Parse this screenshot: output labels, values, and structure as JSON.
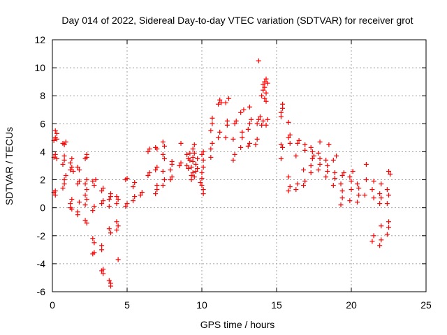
{
  "chart_data": {
    "type": "scatter",
    "title": "Day 014 of 2022, Sidereal Day-to-day VTEC variation (SDTVAR) for receiver grot",
    "xlabel": "GPS time / hours",
    "ylabel": "SDTVAR / TECUs",
    "xlim": [
      0,
      25
    ],
    "ylim": [
      -6,
      12
    ],
    "xticks": [
      0,
      5,
      10,
      15,
      20,
      25
    ],
    "yticks": [
      -6,
      -4,
      -2,
      0,
      2,
      4,
      6,
      8,
      10,
      12
    ],
    "xtick_labels": [
      "0",
      "5",
      "10",
      "15",
      "20",
      "25"
    ],
    "ytick_labels": [
      "-6",
      "-4",
      "-2",
      "0",
      "2",
      "4",
      "6",
      "8",
      "10",
      "12"
    ],
    "grid": true,
    "marker": "+",
    "marker_color": "#ff0000",
    "series": [
      {
        "name": "SDTVAR",
        "points": [
          [
            0.1,
            1.1
          ],
          [
            0.2,
            0.9
          ],
          [
            0.2,
            1.2
          ],
          [
            0.1,
            3.6
          ],
          [
            0.2,
            3.8
          ],
          [
            0.3,
            3.5
          ],
          [
            0.1,
            4.8
          ],
          [
            0.2,
            5.0
          ],
          [
            0.3,
            5.3
          ],
          [
            0.2,
            5.5
          ],
          [
            0.3,
            4.9
          ],
          [
            0.7,
            1.4
          ],
          [
            0.8,
            1.7
          ],
          [
            0.8,
            2.0
          ],
          [
            0.7,
            3.1
          ],
          [
            0.8,
            3.4
          ],
          [
            0.8,
            3.7
          ],
          [
            0.7,
            4.6
          ],
          [
            0.8,
            4.5
          ],
          [
            0.9,
            4.7
          ],
          [
            0.9,
            2.3
          ],
          [
            1.2,
            0.0
          ],
          [
            1.2,
            0.3
          ],
          [
            1.3,
            -0.1
          ],
          [
            1.3,
            0.6
          ],
          [
            1.2,
            2.7
          ],
          [
            1.3,
            2.9
          ],
          [
            1.4,
            2.6
          ],
          [
            1.2,
            3.2
          ],
          [
            1.3,
            3.5
          ],
          [
            1.7,
            -0.3
          ],
          [
            1.7,
            -0.5
          ],
          [
            1.8,
            0.4
          ],
          [
            1.7,
            1.7
          ],
          [
            1.8,
            1.9
          ],
          [
            1.8,
            2.7
          ],
          [
            1.7,
            2.9
          ],
          [
            2.2,
            -0.9
          ],
          [
            2.3,
            -1.1
          ],
          [
            2.2,
            0.2
          ],
          [
            2.3,
            0.6
          ],
          [
            2.2,
            0.9
          ],
          [
            2.3,
            1.3
          ],
          [
            2.2,
            1.7
          ],
          [
            2.3,
            2.0
          ],
          [
            2.2,
            3.5
          ],
          [
            2.3,
            3.8
          ],
          [
            2.3,
            3.6
          ],
          [
            2.7,
            -2.2
          ],
          [
            2.8,
            -2.5
          ],
          [
            2.8,
            -3.2
          ],
          [
            2.7,
            -3.3
          ],
          [
            2.7,
            -0.2
          ],
          [
            2.8,
            0.1
          ],
          [
            2.8,
            1.6
          ],
          [
            2.7,
            1.9
          ],
          [
            2.9,
            2.0
          ],
          [
            3.3,
            -2.7
          ],
          [
            3.3,
            -3.0
          ],
          [
            3.4,
            -4.4
          ],
          [
            3.4,
            -4.7
          ],
          [
            3.3,
            -4.5
          ],
          [
            3.3,
            0.3
          ],
          [
            3.4,
            0.5
          ],
          [
            3.3,
            1.2
          ],
          [
            3.4,
            1.4
          ],
          [
            3.8,
            -5.2
          ],
          [
            3.9,
            -5.4
          ],
          [
            3.9,
            -5.6
          ],
          [
            3.8,
            -1.5
          ],
          [
            3.9,
            -1.8
          ],
          [
            3.8,
            0.1
          ],
          [
            3.9,
            0.8
          ],
          [
            3.8,
            0.6
          ],
          [
            3.9,
            1.0
          ],
          [
            4.3,
            -1.0
          ],
          [
            4.4,
            -1.3
          ],
          [
            4.3,
            -1.6
          ],
          [
            4.4,
            -3.7
          ],
          [
            4.3,
            0.3
          ],
          [
            4.4,
            0.6
          ],
          [
            4.3,
            0.8
          ],
          [
            4.9,
            0.1
          ],
          [
            5.0,
            0.3
          ],
          [
            4.9,
            2.0
          ],
          [
            5.0,
            2.1
          ],
          [
            5.4,
            0.5
          ],
          [
            5.5,
            0.8
          ],
          [
            5.4,
            1.5
          ],
          [
            5.5,
            1.8
          ],
          [
            5.9,
            0.9
          ],
          [
            6.0,
            1.1
          ],
          [
            6.4,
            2.3
          ],
          [
            6.5,
            2.5
          ],
          [
            6.4,
            4.0
          ],
          [
            6.5,
            4.2
          ],
          [
            6.9,
            1.0
          ],
          [
            7.0,
            1.3
          ],
          [
            7.0,
            1.6
          ],
          [
            6.9,
            2.7
          ],
          [
            7.0,
            2.9
          ],
          [
            6.9,
            4.3
          ],
          [
            7.0,
            4.2
          ],
          [
            7.4,
            1.6
          ],
          [
            7.5,
            2.0
          ],
          [
            7.4,
            2.6
          ],
          [
            7.5,
            3.5
          ],
          [
            7.4,
            3.8
          ],
          [
            7.5,
            4.4
          ],
          [
            7.4,
            4.7
          ],
          [
            7.9,
            2.0
          ],
          [
            8.0,
            2.2
          ],
          [
            7.9,
            2.7
          ],
          [
            8.0,
            3.1
          ],
          [
            8.0,
            3.3
          ],
          [
            8.5,
            3.0
          ],
          [
            8.6,
            3.2
          ],
          [
            8.6,
            4.6
          ],
          [
            9.0,
            3.0
          ],
          [
            9.1,
            3.5
          ],
          [
            9.0,
            3.8
          ],
          [
            9.2,
            3.9
          ],
          [
            9.1,
            2.8
          ],
          [
            9.2,
            3.4
          ],
          [
            9.3,
            2.0
          ],
          [
            9.3,
            2.3
          ],
          [
            9.4,
            2.5
          ],
          [
            9.3,
            2.9
          ],
          [
            9.4,
            3.3
          ],
          [
            9.4,
            3.6
          ],
          [
            9.5,
            3.9
          ],
          [
            9.4,
            4.2
          ],
          [
            9.5,
            4.5
          ],
          [
            9.5,
            2.2
          ],
          [
            9.6,
            2.6
          ],
          [
            9.6,
            3.1
          ],
          [
            9.7,
            3.5
          ],
          [
            9.7,
            2.8
          ],
          [
            9.9,
            1.8
          ],
          [
            10.0,
            2.1
          ],
          [
            10.0,
            2.5
          ],
          [
            10.1,
            2.9
          ],
          [
            10.1,
            3.4
          ],
          [
            10.0,
            3.8
          ],
          [
            10.1,
            4.0
          ],
          [
            10.1,
            1.0
          ],
          [
            10.1,
            1.3
          ],
          [
            10.0,
            1.6
          ],
          [
            10.6,
            3.6
          ],
          [
            10.6,
            4.2
          ],
          [
            10.7,
            4.6
          ],
          [
            10.6,
            5.5
          ],
          [
            10.7,
            6.0
          ],
          [
            10.7,
            6.4
          ],
          [
            11.1,
            5.0
          ],
          [
            11.2,
            5.4
          ],
          [
            11.1,
            7.4
          ],
          [
            11.2,
            7.7
          ],
          [
            11.3,
            7.5
          ],
          [
            11.6,
            5.0
          ],
          [
            11.7,
            5.9
          ],
          [
            11.7,
            6.2
          ],
          [
            11.6,
            7.5
          ],
          [
            11.8,
            7.8
          ],
          [
            12.1,
            3.4
          ],
          [
            12.2,
            3.8
          ],
          [
            12.1,
            4.9
          ],
          [
            12.2,
            6.0
          ],
          [
            12.3,
            6.2
          ],
          [
            12.6,
            4.3
          ],
          [
            12.7,
            5.0
          ],
          [
            12.7,
            5.4
          ],
          [
            12.6,
            6.8
          ],
          [
            12.8,
            7.0
          ],
          [
            13.1,
            4.4
          ],
          [
            13.2,
            4.6
          ],
          [
            13.1,
            5.6
          ],
          [
            13.2,
            6.0
          ],
          [
            13.3,
            6.3
          ],
          [
            13.2,
            7.2
          ],
          [
            13.6,
            4.5
          ],
          [
            13.7,
            4.9
          ],
          [
            13.7,
            6.0
          ],
          [
            13.8,
            6.3
          ],
          [
            13.8,
            10.5
          ],
          [
            13.9,
            6.5
          ],
          [
            14.0,
            5.9
          ],
          [
            14.1,
            6.2
          ],
          [
            14.0,
            8.0
          ],
          [
            14.1,
            8.4
          ],
          [
            14.1,
            8.8
          ],
          [
            14.2,
            9.0
          ],
          [
            14.2,
            8.6
          ],
          [
            14.3,
            8.2
          ],
          [
            14.3,
            9.2
          ],
          [
            14.2,
            7.8
          ],
          [
            14.4,
            6.3
          ],
          [
            14.3,
            5.9
          ],
          [
            14.4,
            8.9
          ],
          [
            14.3,
            7.6
          ],
          [
            15.3,
            3.5
          ],
          [
            15.3,
            4.5
          ],
          [
            15.4,
            4.3
          ],
          [
            15.3,
            6.8
          ],
          [
            15.4,
            7.1
          ],
          [
            15.4,
            7.4
          ],
          [
            15.3,
            6.5
          ],
          [
            15.8,
            1.2
          ],
          [
            15.9,
            1.5
          ],
          [
            15.8,
            2.2
          ],
          [
            15.9,
            4.6
          ],
          [
            15.8,
            5.0
          ],
          [
            15.9,
            5.2
          ],
          [
            15.8,
            6.1
          ],
          [
            16.3,
            1.3
          ],
          [
            16.4,
            1.7
          ],
          [
            16.3,
            3.7
          ],
          [
            16.4,
            4.6
          ],
          [
            16.5,
            4.8
          ],
          [
            16.8,
            1.6
          ],
          [
            16.9,
            1.9
          ],
          [
            16.8,
            2.7
          ],
          [
            16.9,
            4.1
          ],
          [
            16.9,
            4.5
          ],
          [
            17.3,
            2.5
          ],
          [
            17.3,
            3.0
          ],
          [
            17.4,
            3.5
          ],
          [
            17.4,
            4.0
          ],
          [
            17.3,
            4.3
          ],
          [
            17.5,
            3.7
          ],
          [
            17.8,
            2.7
          ],
          [
            17.9,
            3.1
          ],
          [
            17.9,
            3.5
          ],
          [
            17.8,
            3.9
          ],
          [
            17.9,
            4.7
          ],
          [
            18.3,
            2.2
          ],
          [
            18.4,
            2.6
          ],
          [
            18.4,
            3.0
          ],
          [
            18.3,
            3.4
          ],
          [
            18.5,
            4.5
          ],
          [
            18.8,
            1.6
          ],
          [
            18.9,
            2.1
          ],
          [
            18.9,
            2.5
          ],
          [
            18.8,
            3.4
          ],
          [
            19.0,
            3.7
          ],
          [
            19.3,
            0.2
          ],
          [
            19.4,
            0.7
          ],
          [
            19.4,
            1.2
          ],
          [
            19.3,
            1.7
          ],
          [
            19.4,
            2.3
          ],
          [
            19.5,
            2.5
          ],
          [
            19.9,
            0.5
          ],
          [
            20.0,
            1.3
          ],
          [
            20.0,
            1.9
          ],
          [
            19.9,
            2.2
          ],
          [
            20.1,
            2.6
          ],
          [
            20.4,
            0.4
          ],
          [
            20.5,
            0.9
          ],
          [
            20.5,
            1.4
          ],
          [
            20.4,
            1.7
          ],
          [
            20.9,
            0.9
          ],
          [
            21.0,
            2.0
          ],
          [
            21.0,
            3.1
          ],
          [
            21.4,
            -2.4
          ],
          [
            21.5,
            -2.0
          ],
          [
            21.5,
            0.7
          ],
          [
            21.4,
            1.3
          ],
          [
            21.5,
            1.9
          ],
          [
            21.9,
            -2.7
          ],
          [
            22.0,
            -2.3
          ],
          [
            22.0,
            -1.3
          ],
          [
            21.9,
            0.3
          ],
          [
            22.0,
            0.7
          ],
          [
            21.9,
            1.0
          ],
          [
            22.0,
            1.7
          ],
          [
            22.4,
            -1.9
          ],
          [
            22.5,
            -1.4
          ],
          [
            22.5,
            -1.0
          ],
          [
            22.4,
            0.3
          ],
          [
            22.5,
            0.9
          ],
          [
            22.4,
            1.3
          ],
          [
            22.5,
            2.6
          ],
          [
            22.6,
            2.4
          ]
        ]
      }
    ]
  }
}
